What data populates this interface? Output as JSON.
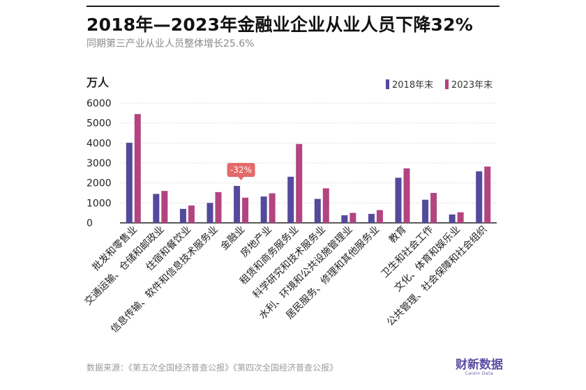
{
  "header": {
    "title": "2018年—2023年金融业企业从业人员下降32%",
    "subtitle": "同期第三产业从业人员整体增长25.6%"
  },
  "footer": {
    "source": "数据来源：《第五次全国经济普查公报》《第四次全国经济普查公报》",
    "brand": "财新数据",
    "brand_en": "Caixin Data"
  },
  "colors": {
    "series_2018": "#534a9c",
    "series_2023": "#b2447f",
    "annotation_bg": "#e46a6a",
    "gridline": "#dcdcdc",
    "axis": "#222222"
  },
  "chart_data": {
    "type": "bar",
    "ylabel": "万人",
    "ylim": [
      0,
      6000
    ],
    "yticks": [
      0,
      1000,
      2000,
      3000,
      4000,
      5000,
      6000
    ],
    "grid": true,
    "legend": "top-right",
    "categories": [
      "批发和零售业",
      "交通运输、仓储和邮政业",
      "住宿和餐饮业",
      "信息传输、软件和信息技术服务业",
      "金融业",
      "房地产业",
      "租赁和商务服务业",
      "科学研究和技术服务业",
      "水利、环境和公共设施管理业",
      "居民服务、修理和其他服务业",
      "教育",
      "卫生和社会工作",
      "文化、体育和娱乐业",
      "公共管理、社会保障和社会组织"
    ],
    "series": [
      {
        "name": "2018年末",
        "values": [
          4010,
          1450,
          700,
          1000,
          1850,
          1320,
          2310,
          1200,
          380,
          450,
          2260,
          1160,
          420,
          2580
        ]
      },
      {
        "name": "2023年末",
        "values": [
          5450,
          1600,
          870,
          1540,
          1260,
          1480,
          3950,
          1730,
          500,
          640,
          2730,
          1500,
          530,
          2820
        ]
      }
    ],
    "annotations": [
      {
        "category": "金融业",
        "text": "-32%"
      }
    ]
  }
}
